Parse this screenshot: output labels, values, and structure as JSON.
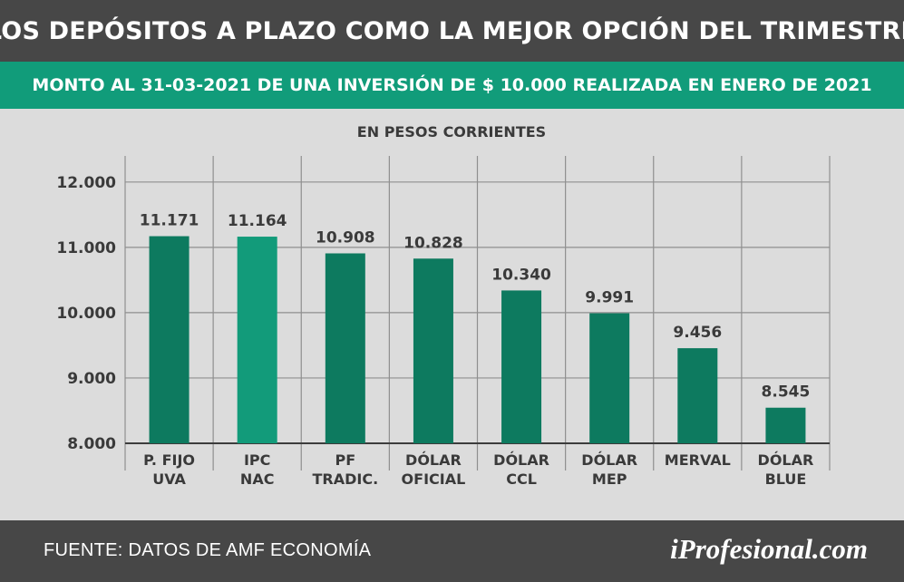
{
  "header": {
    "title": "LOS DEPÓSITOS A PLAZO COMO LA MEJOR OPCIÓN DEL TRIMESTRE",
    "subtitle": "MONTO AL 31-03-2021 DE UNA INVERSIÓN DE $ 10.000 REALIZADA EN ENERO DE 2021"
  },
  "footer": {
    "source": "FUENTE: DATOS DE AMF ECONOMÍA",
    "brand": "iProfesional.com"
  },
  "colors": {
    "bar": "#0d7a5f",
    "bar_highlight": "#129b7a",
    "header": "#474747",
    "accent": "#119c7a",
    "background": "#dcdcdc"
  },
  "chart_data": {
    "type": "bar",
    "unit_label": "EN PESOS CORRIENTES",
    "categories": [
      [
        "P.  FIJO",
        "UVA"
      ],
      [
        "IPC",
        "NAC"
      ],
      [
        "PF",
        "TRADIC."
      ],
      [
        "DÓLAR",
        "OFICIAL"
      ],
      [
        "DÓLAR",
        "CCL"
      ],
      [
        "DÓLAR",
        "MEP"
      ],
      [
        "MERVAL"
      ],
      [
        "DÓLAR",
        "BLUE"
      ]
    ],
    "values": [
      11171,
      11164,
      10908,
      10828,
      10340,
      9991,
      9456,
      8545
    ],
    "value_labels": [
      "11.171",
      "11.164",
      "10.908",
      "10.828",
      "10.340",
      "9.991",
      "9.456",
      "8.545"
    ],
    "highlight_index": 1,
    "yticks": [
      8000,
      9000,
      10000,
      11000,
      12000
    ],
    "ytick_labels": [
      "8.000",
      "9.000",
      "10.000",
      "11.000",
      "12.000"
    ],
    "ylim": [
      8000,
      12400
    ],
    "grid": true
  }
}
